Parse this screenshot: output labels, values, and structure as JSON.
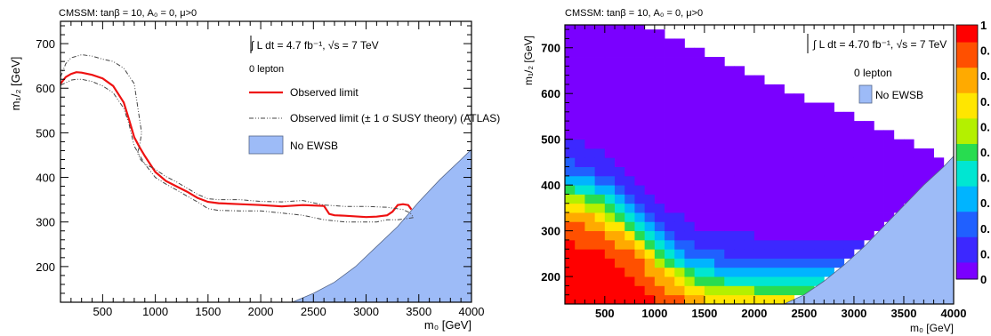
{
  "chart_data": [
    {
      "type": "line",
      "header": "CMSSM: tanβ = 10, A₀ = 0, μ>0",
      "xlabel": "m₀ [GeV]",
      "ylabel": "m₁/₂ [GeV]",
      "xlim": [
        100,
        4000
      ],
      "ylim": [
        120,
        750
      ],
      "xticks": [
        500,
        1000,
        1500,
        2000,
        2500,
        3000,
        3500,
        4000
      ],
      "yticks": [
        200,
        300,
        400,
        500,
        600,
        700
      ],
      "annotations": {
        "lumi": "∫ L dt = 4.7 fb⁻¹,  √s = 7 TeV",
        "channel": "0 lepton"
      },
      "legend": [
        "Observed limit",
        "Observed limit (± 1 σ SUSY theory) (ATLAS)",
        "No EWSB"
      ],
      "series": [
        {
          "name": "Observed limit",
          "color": "#ee1111",
          "x": [
            100,
            150,
            200,
            250,
            300,
            400,
            500,
            600,
            700,
            750,
            800,
            850,
            900,
            950,
            1000,
            1100,
            1200,
            1300,
            1400,
            1500,
            1600,
            1800,
            2000,
            2200,
            2400,
            2600,
            2650,
            2700,
            2800,
            3000,
            3100,
            3200,
            3250,
            3300,
            3350,
            3400,
            3430
          ],
          "y": [
            610,
            625,
            632,
            636,
            635,
            630,
            622,
            605,
            568,
            530,
            490,
            468,
            448,
            430,
            412,
            392,
            380,
            368,
            354,
            345,
            342,
            340,
            338,
            335,
            338,
            336,
            318,
            315,
            314,
            311,
            312,
            315,
            323,
            338,
            340,
            338,
            328
          ]
        },
        {
          "name": "Observed limit (± 1 σ SUSY theory) (ATLAS)",
          "color": "#444444",
          "x": [
            100,
            150,
            200,
            300,
            400,
            500,
            600,
            700,
            800,
            870,
            850,
            830,
            860,
            900,
            1000,
            1100,
            1200,
            1300,
            1400,
            1500,
            1600,
            1800,
            2000,
            2200,
            2400,
            2600,
            2800,
            3000,
            3200,
            3350,
            3420,
            3450,
            3400,
            3300,
            3200,
            3100,
            3000,
            2800,
            2600,
            2400,
            2200,
            2000,
            1800,
            1600,
            1500,
            1400,
            1300,
            1200,
            1100,
            1000,
            900,
            800,
            750,
            700,
            600,
            500,
            400,
            300,
            250,
            200,
            150,
            110,
            100
          ],
          "y": [
            625,
            655,
            668,
            675,
            672,
            665,
            660,
            645,
            610,
            500,
            470,
            455,
            440,
            430,
            418,
            402,
            390,
            376,
            362,
            352,
            350,
            350,
            346,
            345,
            348,
            338,
            335,
            335,
            333,
            328,
            320,
            310,
            308,
            305,
            305,
            300,
            300,
            300,
            305,
            315,
            320,
            325,
            325,
            326,
            330,
            345,
            358,
            372,
            385,
            400,
            430,
            470,
            520,
            555,
            590,
            605,
            615,
            620,
            620,
            618,
            612,
            608,
            605
          ]
        }
      ],
      "no_ewsb_region": {
        "name": "No EWSB",
        "color": "#9dbbf7",
        "boundary_x": [
          2300,
          2500,
          2700,
          2900,
          3100,
          3300,
          3500,
          3700,
          3900,
          4000
        ],
        "boundary_y": [
          120,
          140,
          165,
          200,
          245,
          290,
          345,
          395,
          440,
          463
        ]
      }
    },
    {
      "type": "heatmap",
      "header": "CMSSM: tanβ = 10, A₀ = 0, μ>0",
      "xlabel": "m₀ [GeV]",
      "ylabel": "m₁/₂ [GeV]",
      "xlim": [
        100,
        4000
      ],
      "ylim": [
        140,
        750
      ],
      "xticks": [
        500,
        1000,
        1500,
        2000,
        2500,
        3000,
        3500,
        4000
      ],
      "yticks": [
        200,
        300,
        400,
        500,
        600,
        700
      ],
      "annotations": {
        "lumi": "∫ L dt = 4.70 fb⁻¹,  √s = 7 TeV",
        "channel": "0 lepton"
      },
      "legend": [
        "No EWSB"
      ],
      "colorbar": {
        "range": [
          0,
          1
        ],
        "tick_labels": [
          "1",
          "0.",
          "0.",
          "0.",
          "0.",
          "0.",
          "0.",
          "0.",
          "0.",
          "0.",
          "0"
        ],
        "colors": [
          "#7a00ff",
          "#3c28ff",
          "#2060ff",
          "#00b4ff",
          "#00e6d2",
          "#28dc50",
          "#b4f000",
          "#ffe600",
          "#ffaa00",
          "#ff5000",
          "#ff0000"
        ]
      },
      "grid": {
        "x0": 100,
        "dx": 100,
        "y0": 140,
        "dy": 20,
        "nx": 39,
        "ny": 31
      },
      "no_ewsb_region": {
        "name": "No EWSB",
        "color": "#9dbbf7",
        "boundary_x": [
          2300,
          2500,
          2700,
          2900,
          3100,
          3300,
          3500,
          3700,
          3900,
          4000
        ],
        "boundary_y": [
          140,
          160,
          190,
          225,
          265,
          310,
          355,
          400,
          440,
          463
        ]
      }
    }
  ]
}
